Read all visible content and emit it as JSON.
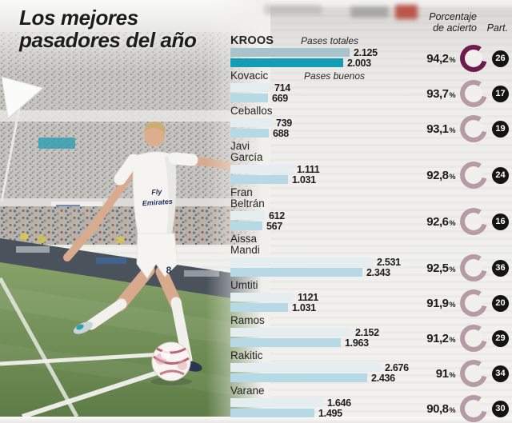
{
  "title": "Los mejores\npasadores del año",
  "chart": {
    "header_accuracy": "Porcentaje\nde acierto",
    "header_part": "Part.",
    "label_total": "Pases totales",
    "label_good": "Pases buenos",
    "percent_sign": "%"
  },
  "colors": {
    "ink": "#1d1d1b",
    "bar_total": "#e4edf0",
    "bar_good": "#b7d9e6",
    "bar_total_hl": "#a9c3cb",
    "bar_good_hl": "#129cb6",
    "ring": "#b59ba6",
    "ring_hl": "#6e1c4f",
    "badge": "#141414"
  },
  "players": [
    {
      "name": "KROOS",
      "total": "2.125",
      "good": "2.003",
      "pct": "94,2",
      "part": "26",
      "highlight": true
    },
    {
      "name": "Kovacic",
      "total": "714",
      "good": "669",
      "pct": "93,7",
      "part": "17",
      "highlight": false
    },
    {
      "name": "Ceballos",
      "total": "739",
      "good": "688",
      "pct": "93,1",
      "part": "19",
      "highlight": false
    },
    {
      "name": "Javi\nGarcía",
      "total": "1.111",
      "good": "1.031",
      "pct": "92,8",
      "part": "24",
      "highlight": false
    },
    {
      "name": "Fran\nBeltrán",
      "total": "612",
      "good": "567",
      "pct": "92,6",
      "part": "16",
      "highlight": false
    },
    {
      "name": "Aissa\nMandi",
      "total": "2.531",
      "good": "2.343",
      "pct": "92,5",
      "part": "36",
      "highlight": false
    },
    {
      "name": "Umtiti",
      "total": "1121",
      "good": "1.031",
      "pct": "91,9",
      "part": "20",
      "highlight": false
    },
    {
      "name": "Ramos",
      "total": "2.152",
      "good": "1.963",
      "pct": "91,2",
      "part": "29",
      "highlight": false
    },
    {
      "name": "Rakitic",
      "total": "2.676",
      "good": "2.436",
      "pct": "91",
      "part": "34",
      "highlight": false
    },
    {
      "name": "Varane",
      "total": "1.646",
      "good": "1.495",
      "pct": "90,8",
      "part": "30",
      "highlight": false
    }
  ],
  "photo": {
    "shirt_sponsor_line1": "Fly",
    "shirt_sponsor_line2": "Emirates",
    "shirt_number": "8"
  },
  "chart_data": {
    "type": "bar",
    "orientation": "horizontal",
    "title": "Los mejores pasadores del año",
    "categories": [
      "Kroos",
      "Kovacic",
      "Ceballos",
      "Javi García",
      "Fran Beltrán",
      "Aissa Mandi",
      "Umtiti",
      "Ramos",
      "Rakitic",
      "Varane"
    ],
    "series": [
      {
        "name": "Pases totales",
        "values": [
          2125,
          714,
          739,
          1111,
          612,
          2531,
          1121,
          2152,
          2676,
          1646
        ]
      },
      {
        "name": "Pases buenos",
        "values": [
          2003,
          669,
          688,
          1031,
          567,
          2343,
          1031,
          1963,
          2436,
          1495
        ]
      }
    ],
    "porcentaje_de_acierto": [
      94.2,
      93.7,
      93.1,
      92.8,
      92.6,
      92.5,
      91.9,
      91.2,
      91.0,
      90.8
    ],
    "partidos": [
      26,
      17,
      19,
      24,
      16,
      36,
      20,
      29,
      34,
      30
    ],
    "highlighted_category": "Kroos",
    "legend_position": "inline-first-row",
    "grid": false
  }
}
